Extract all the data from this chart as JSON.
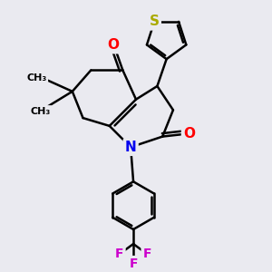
{
  "bg_color": "#eaeaf0",
  "bond_color": "#000000",
  "bond_width": 1.8,
  "atom_colors": {
    "O": "#ff0000",
    "N": "#0000ee",
    "S": "#aaaa00",
    "F": "#cc00cc",
    "C": "#000000"
  },
  "font_size": 11,
  "figsize": [
    3.0,
    3.0
  ],
  "dpi": 100
}
